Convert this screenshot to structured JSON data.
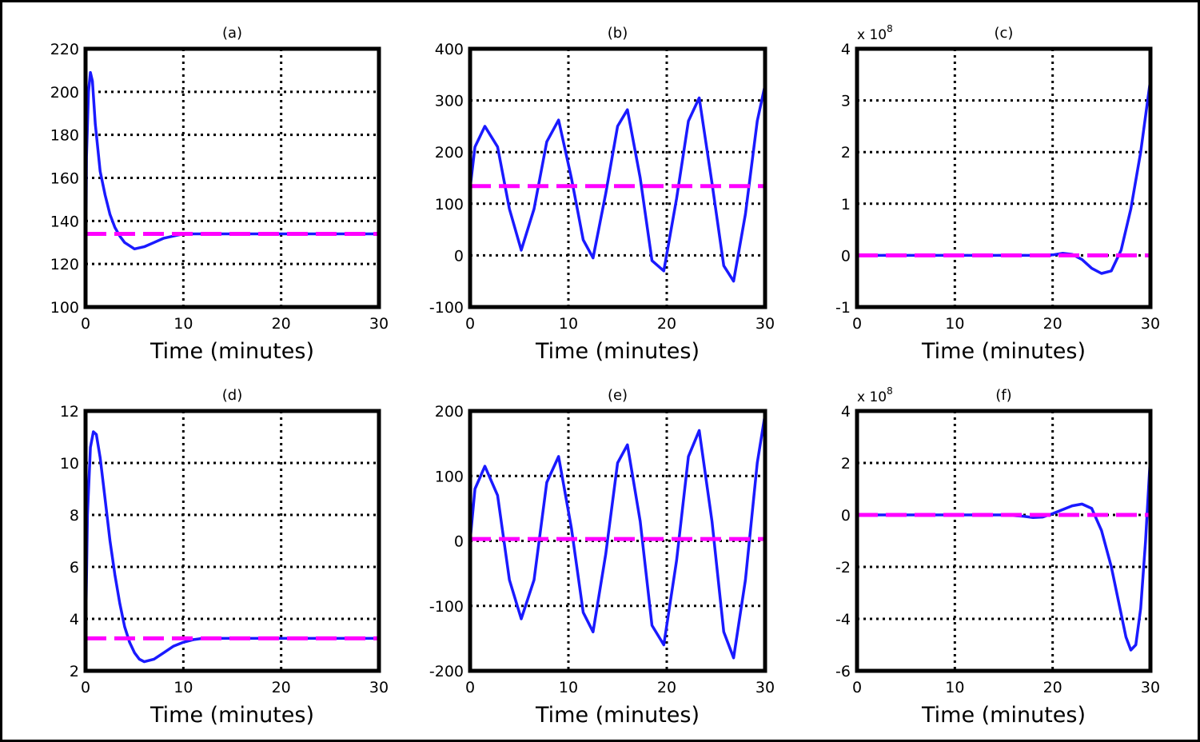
{
  "chart_data": [
    {
      "id": "a",
      "type": "line",
      "title": "(a)",
      "xlabel": "Time (minutes)",
      "ylabel": "",
      "multiplier": "",
      "xlim": [
        0,
        30
      ],
      "ylim": [
        100,
        220
      ],
      "xticks": [
        0,
        10,
        20,
        30
      ],
      "xtick_labels": [
        "0",
        "10",
        "20",
        "30"
      ],
      "yticks": [
        100,
        120,
        140,
        160,
        180,
        200,
        220
      ],
      "ytick_labels": [
        "100",
        "120",
        "140",
        "160",
        "180",
        "200",
        "220"
      ],
      "grid": true,
      "series": [
        {
          "style": "solid",
          "color": "#1a1aff",
          "x": [
            0,
            0.1,
            0.3,
            0.5,
            0.7,
            1,
            1.5,
            2,
            2.5,
            3,
            3.5,
            4,
            5,
            6,
            7,
            8,
            9,
            10,
            12,
            15,
            20,
            25,
            30
          ],
          "y": [
            100,
            170,
            200,
            209,
            205,
            185,
            163,
            152,
            143,
            137,
            133,
            130,
            127,
            128,
            130,
            132,
            133,
            134,
            134,
            134,
            134,
            134,
            134
          ]
        },
        {
          "style": "dashed",
          "color": "#ff00ff",
          "x": [
            0,
            30
          ],
          "y": [
            134,
            134
          ]
        }
      ]
    },
    {
      "id": "b",
      "type": "line",
      "title": "(b)",
      "xlabel": "Time (minutes)",
      "ylabel": "",
      "multiplier": "",
      "xlim": [
        0,
        30
      ],
      "ylim": [
        -100,
        400
      ],
      "xticks": [
        0,
        10,
        20,
        30
      ],
      "xtick_labels": [
        "0",
        "10",
        "20",
        "30"
      ],
      "yticks": [
        -100,
        0,
        100,
        200,
        300,
        400
      ],
      "ytick_labels": [
        "-100",
        "0",
        "100",
        "200",
        "300",
        "400"
      ],
      "grid": true,
      "series": [
        {
          "style": "solid",
          "color": "#1a1aff",
          "x": [
            0,
            0.5,
            1.5,
            2.8,
            4,
            5.2,
            6.5,
            7.8,
            9,
            10.3,
            11.5,
            12.5,
            13.8,
            15,
            16,
            17.3,
            18.5,
            19.7,
            21,
            22.2,
            23.3,
            24.6,
            25.8,
            26.8,
            28,
            29.2,
            30
          ],
          "y": [
            130,
            210,
            250,
            210,
            90,
            10,
            90,
            220,
            262,
            150,
            30,
            -5,
            120,
            250,
            282,
            150,
            -10,
            -30,
            110,
            260,
            305,
            140,
            -20,
            -50,
            80,
            260,
            330
          ]
        },
        {
          "style": "dashed",
          "color": "#ff00ff",
          "x": [
            0,
            30
          ],
          "y": [
            134,
            134
          ]
        }
      ]
    },
    {
      "id": "c",
      "type": "line",
      "title": "(c)",
      "xlabel": "Time (minutes)",
      "ylabel": "",
      "multiplier": "x 10",
      "multiplier_exponent": "8",
      "xlim": [
        0,
        30
      ],
      "ylim": [
        -1,
        4
      ],
      "xticks": [
        0,
        10,
        20,
        30
      ],
      "xtick_labels": [
        "0",
        "10",
        "20",
        "30"
      ],
      "yticks": [
        -1,
        0,
        1,
        2,
        3,
        4
      ],
      "ytick_labels": [
        "-1",
        "0",
        "1",
        "2",
        "3",
        "4"
      ],
      "grid": true,
      "series": [
        {
          "style": "solid",
          "color": "#1a1aff",
          "x": [
            0,
            5,
            10,
            15,
            18,
            20,
            21,
            22,
            23,
            24,
            25,
            26,
            27,
            28,
            29,
            30
          ],
          "y": [
            0,
            0,
            0,
            0,
            0,
            0.01,
            0.04,
            0.02,
            -0.08,
            -0.25,
            -0.35,
            -0.3,
            0.1,
            0.9,
            2,
            3.4
          ]
        },
        {
          "style": "dashed",
          "color": "#ff00ff",
          "x": [
            0,
            30
          ],
          "y": [
            0,
            0
          ]
        }
      ]
    },
    {
      "id": "d",
      "type": "line",
      "title": "(d)",
      "xlabel": "Time (minutes)",
      "ylabel": "",
      "multiplier": "",
      "xlim": [
        0,
        30
      ],
      "ylim": [
        2,
        12
      ],
      "xticks": [
        0,
        10,
        20,
        30
      ],
      "xtick_labels": [
        "0",
        "10",
        "20",
        "30"
      ],
      "yticks": [
        2,
        4,
        6,
        8,
        10,
        12
      ],
      "ytick_labels": [
        "2",
        "4",
        "6",
        "8",
        "10",
        "12"
      ],
      "grid": true,
      "series": [
        {
          "style": "solid",
          "color": "#1a1aff",
          "x": [
            0,
            0.2,
            0.5,
            0.8,
            1.1,
            1.5,
            2,
            2.5,
            3,
            3.5,
            4,
            4.5,
            5,
            5.5,
            6,
            7,
            8,
            9,
            10,
            11,
            12,
            15,
            20,
            25,
            30
          ],
          "y": [
            3.2,
            8,
            10.6,
            11.2,
            11.1,
            10.2,
            8.6,
            7,
            5.7,
            4.6,
            3.7,
            3.1,
            2.7,
            2.45,
            2.35,
            2.45,
            2.7,
            2.95,
            3.1,
            3.2,
            3.25,
            3.25,
            3.25,
            3.25,
            3.25
          ]
        },
        {
          "style": "dashed",
          "color": "#ff00ff",
          "x": [
            0,
            30
          ],
          "y": [
            3.25,
            3.25
          ]
        }
      ]
    },
    {
      "id": "e",
      "type": "line",
      "title": "(e)",
      "xlabel": "Time (minutes)",
      "ylabel": "",
      "multiplier": "",
      "xlim": [
        0,
        30
      ],
      "ylim": [
        -200,
        200
      ],
      "xticks": [
        0,
        10,
        20,
        30
      ],
      "xtick_labels": [
        "0",
        "10",
        "20",
        "30"
      ],
      "yticks": [
        -200,
        -100,
        0,
        100,
        200
      ],
      "ytick_labels": [
        "-200",
        "-100",
        "0",
        "100",
        "200"
      ],
      "grid": true,
      "series": [
        {
          "style": "solid",
          "color": "#1a1aff",
          "x": [
            0,
            0.5,
            1.5,
            2.8,
            4,
            5.2,
            6.5,
            7.8,
            9,
            10.3,
            11.5,
            12.5,
            13.8,
            15,
            16,
            17.3,
            18.5,
            19.7,
            21,
            22.2,
            23.3,
            24.6,
            25.8,
            26.8,
            28,
            29.2,
            30
          ],
          "y": [
            0,
            80,
            115,
            70,
            -60,
            -120,
            -60,
            90,
            130,
            20,
            -110,
            -140,
            -20,
            120,
            148,
            30,
            -130,
            -160,
            -30,
            130,
            170,
            30,
            -140,
            -180,
            -60,
            120,
            195
          ]
        },
        {
          "style": "dashed",
          "color": "#ff00ff",
          "x": [
            0,
            30
          ],
          "y": [
            3,
            3
          ]
        }
      ]
    },
    {
      "id": "f",
      "type": "line",
      "title": "(f)",
      "xlabel": "Time (minutes)",
      "ylabel": "",
      "multiplier": "x 10",
      "multiplier_exponent": "8",
      "xlim": [
        0,
        30
      ],
      "ylim": [
        -6,
        4
      ],
      "xticks": [
        0,
        10,
        20,
        30
      ],
      "xtick_labels": [
        "0",
        "10",
        "20",
        "30"
      ],
      "yticks": [
        -6,
        -4,
        -2,
        0,
        2,
        4
      ],
      "ytick_labels": [
        "-6",
        "-4",
        "-2",
        "0",
        "2",
        "4"
      ],
      "grid": true,
      "series": [
        {
          "style": "solid",
          "color": "#1a1aff",
          "x": [
            0,
            10,
            15,
            17,
            18,
            19,
            20,
            21,
            22,
            23,
            24,
            25,
            26,
            27,
            27.5,
            28,
            28.5,
            29,
            29.5,
            30
          ],
          "y": [
            0,
            0,
            0,
            -0.05,
            -0.1,
            -0.08,
            0.05,
            0.2,
            0.35,
            0.42,
            0.25,
            -0.6,
            -2,
            -3.8,
            -4.7,
            -5.2,
            -5,
            -3.6,
            -1,
            2.3
          ]
        },
        {
          "style": "dashed",
          "color": "#ff00ff",
          "x": [
            0,
            30
          ],
          "y": [
            0,
            0
          ]
        }
      ]
    }
  ]
}
